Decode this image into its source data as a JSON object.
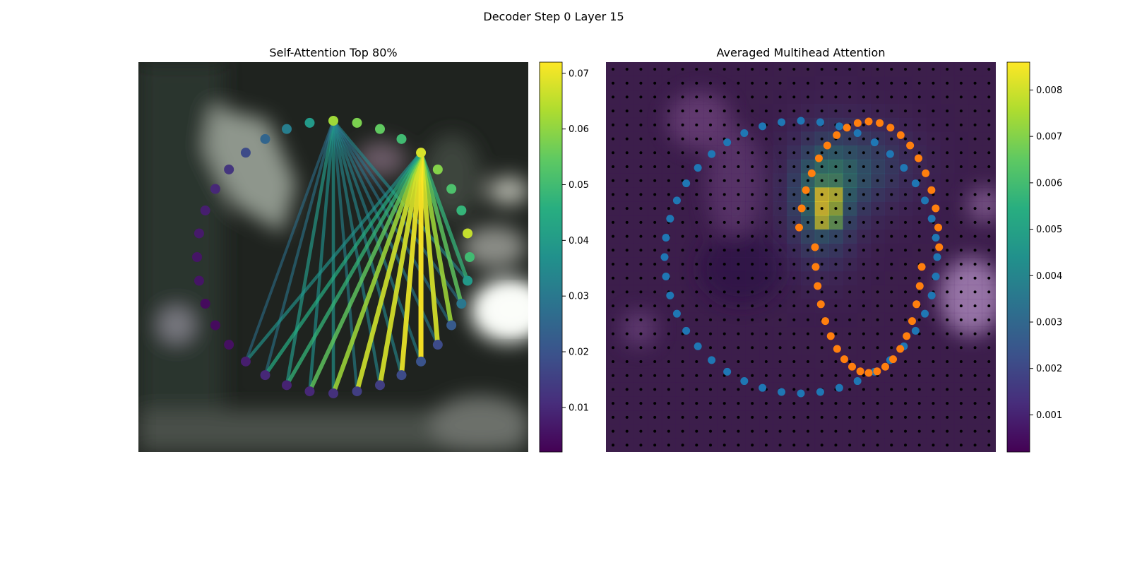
{
  "figure": {
    "suptitle": "Decoder Step 0 Layer 15"
  },
  "chart_data": [
    {
      "type": "scatter",
      "title": "Self-Attention Top 80%",
      "point_count": 36,
      "colormap": "viridis",
      "colorbar": {
        "ticks": [
          "0.01",
          "0.02",
          "0.03",
          "0.04",
          "0.05",
          "0.06",
          "0.07"
        ],
        "min": 0.002,
        "max": 0.072
      },
      "point_values": [
        0.062,
        0.058,
        0.055,
        0.05,
        0.068,
        0.059,
        0.052,
        0.048,
        0.066,
        0.05,
        0.04,
        0.03,
        0.022,
        0.018,
        0.02,
        0.018,
        0.015,
        0.015,
        0.012,
        0.01,
        0.009,
        0.01,
        0.008,
        0.005,
        0.004,
        0.004,
        0.006,
        0.006,
        0.007,
        0.008,
        0.01,
        0.013,
        0.018,
        0.025,
        0.032,
        0.04
      ],
      "sources": [
        0,
        4
      ],
      "edge_values_from_0": [
        0.035,
        0.03,
        0.03,
        0.032,
        0.033,
        0.035,
        0.035,
        0.033,
        0.038,
        0.037,
        0.04,
        0.03,
        0.028
      ],
      "edge_values_from_4": [
        0.048,
        0.055,
        0.062,
        0.068,
        0.072,
        0.07,
        0.068,
        0.067,
        0.062,
        0.055,
        0.048,
        0.045,
        0.038
      ]
    },
    {
      "type": "heatmap",
      "title": "Averaged Multihead Attention",
      "colormap": "viridis",
      "colorbar": {
        "ticks": [
          "0.001",
          "0.002",
          "0.003",
          "0.004",
          "0.005",
          "0.006",
          "0.007",
          "0.008"
        ],
        "min": 0.0002,
        "max": 0.0086
      },
      "overlay_series": [
        {
          "color": "#1f77b4",
          "point_count": 44
        },
        {
          "color": "#ff7f0e",
          "point_count": 40
        }
      ]
    }
  ]
}
